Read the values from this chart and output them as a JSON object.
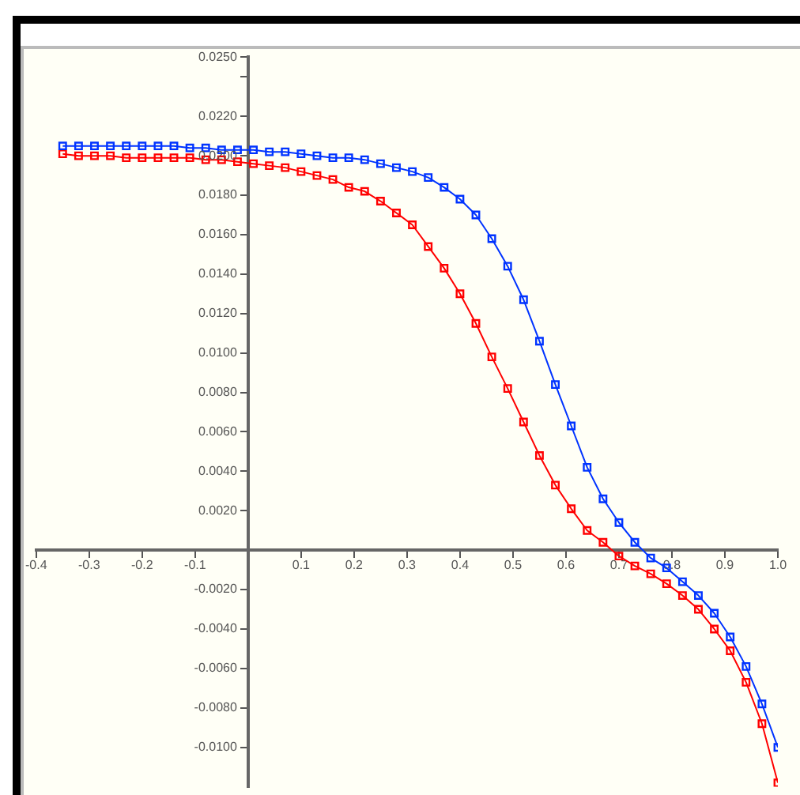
{
  "chart_data": {
    "type": "line",
    "x": [
      -0.35,
      -0.32,
      -0.29,
      -0.26,
      -0.23,
      -0.2,
      -0.17,
      -0.14,
      -0.11,
      -0.08,
      -0.05,
      -0.02,
      0.01,
      0.04,
      0.07,
      0.1,
      0.13,
      0.16,
      0.19,
      0.22,
      0.25,
      0.28,
      0.31,
      0.34,
      0.37,
      0.4,
      0.43,
      0.46,
      0.49,
      0.52,
      0.55,
      0.58,
      0.61,
      0.64,
      0.67,
      0.7,
      0.73,
      0.76,
      0.79,
      0.82,
      0.85,
      0.88,
      0.91,
      0.94,
      0.97,
      1.0
    ],
    "series": [
      {
        "color": "#0033ff",
        "values": [
          0.0205,
          0.0205,
          0.0205,
          0.0205,
          0.0205,
          0.0205,
          0.0205,
          0.0205,
          0.0204,
          0.0204,
          0.0203,
          0.0203,
          0.0203,
          0.0202,
          0.0202,
          0.0201,
          0.02,
          0.0199,
          0.0199,
          0.0198,
          0.0196,
          0.0194,
          0.0192,
          0.0189,
          0.0184,
          0.0178,
          0.017,
          0.0158,
          0.0144,
          0.0127,
          0.0106,
          0.0084,
          0.0063,
          0.0042,
          0.0026,
          0.0014,
          0.0004,
          -0.0004,
          -0.0009,
          -0.0016,
          -0.0023,
          -0.0032,
          -0.0044,
          -0.0059,
          -0.0078,
          -0.01
        ]
      },
      {
        "color": "#ff0000",
        "values": [
          0.0201,
          0.02,
          0.02,
          0.02,
          0.0199,
          0.0199,
          0.0199,
          0.0199,
          0.0199,
          0.0198,
          0.0198,
          0.0197,
          0.0196,
          0.0195,
          0.0194,
          0.0192,
          0.019,
          0.0188,
          0.0184,
          0.0182,
          0.0177,
          0.0171,
          0.0165,
          0.0154,
          0.0143,
          0.013,
          0.0115,
          0.0098,
          0.0082,
          0.0065,
          0.0048,
          0.0033,
          0.0021,
          0.001,
          0.0004,
          -0.0003,
          -0.0008,
          -0.0012,
          -0.0017,
          -0.0023,
          -0.003,
          -0.004,
          -0.0051,
          -0.0067,
          -0.0088,
          -0.0118
        ]
      }
    ],
    "xlim": [
      -0.4,
      1.0
    ],
    "xticks": [
      -0.4,
      -0.3,
      -0.2,
      -0.1,
      {
        "value": 0,
        "label": null
      },
      0.1,
      0.2,
      0.3,
      0.4,
      0.5,
      0.6,
      0.7,
      0.8,
      0.9,
      {
        "value": 1.0,
        "label": "1.0"
      }
    ],
    "ylim": [
      -0.012,
      0.025
    ],
    "yticks": [
      {
        "value": -0.01,
        "label": "-0.0100"
      },
      {
        "value": -0.008,
        "label": "-0.0080"
      },
      {
        "value": -0.006,
        "label": "-0.0060"
      },
      {
        "value": -0.004,
        "label": "-0.0040"
      },
      {
        "value": -0.002,
        "label": "-0.0020"
      },
      {
        "value": 0,
        "label": null
      },
      {
        "value": 0.002,
        "label": "0.0020"
      },
      {
        "value": 0.004,
        "label": "0.0040"
      },
      {
        "value": 0.006,
        "label": "0.0060"
      },
      {
        "value": 0.008,
        "label": "0.0080"
      },
      {
        "value": 0.01,
        "label": "0.0100"
      },
      {
        "value": 0.012,
        "label": "0.0120"
      },
      {
        "value": 0.014,
        "label": "0.0140"
      },
      {
        "value": 0.016,
        "label": "0.0160"
      },
      {
        "value": 0.018,
        "label": "0.0180"
      },
      {
        "value": 0.02,
        "label": "0.0200"
      },
      {
        "value": 0.022,
        "label": "0.0220"
      },
      {
        "value": 0.024,
        "label": null
      },
      {
        "value": 0.025,
        "label": "0.0250"
      }
    ],
    "grid": false,
    "legend": false,
    "marker": "square",
    "line_style": "solid"
  }
}
